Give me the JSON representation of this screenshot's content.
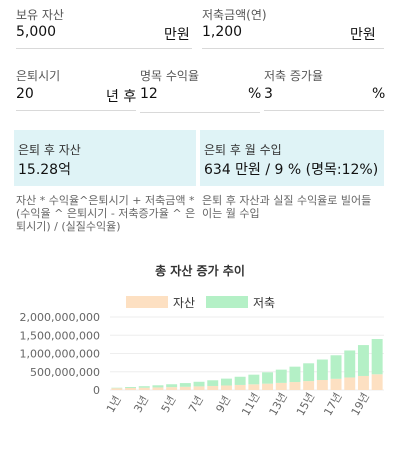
{
  "inputs": {
    "assets": {
      "label": "보유 자산",
      "value": "5,000",
      "unit": "만원"
    },
    "annual_saving": {
      "label": "저축금액(연)",
      "value": "1,200",
      "unit": "만원"
    },
    "retire_years": {
      "label": "은퇴시기",
      "value": "20",
      "unit": "년 후"
    },
    "nominal_return": {
      "label": "명목 수익율",
      "value": "12",
      "unit": "%"
    },
    "saving_growth": {
      "label": "저축 증가율",
      "value": "3",
      "unit": "%"
    }
  },
  "results": {
    "assets_after": {
      "label": "은퇴 후 자산",
      "value": "15.28억"
    },
    "monthly_income": {
      "label": "은퇴 후 월 수입",
      "value": "634 만원 / 9 % (명목:12%)"
    }
  },
  "notes": {
    "left": [
      "자산 * 수익율^은퇴시기 + 저축금액 *",
      "(수익율 ^ 은퇴시기 - 저축증가율 ^ 은",
      "퇴시기) / (실질수익율)"
    ],
    "right": [
      "은퇴 후 자산과 실질 수익율로 빌어들",
      "이는 월 수입"
    ]
  },
  "colors": {
    "card_bg": "#dff3f6",
    "asset": "#fde0c2",
    "saving": "#b4f0c6"
  },
  "chart_data": {
    "type": "bar",
    "stacked": true,
    "title": "총 자산 증가 추이",
    "legend_position": "top",
    "categories": [
      "1년",
      "2년",
      "3년",
      "4년",
      "5년",
      "6년",
      "7년",
      "8년",
      "9년",
      "10년",
      "11년",
      "12년",
      "13년",
      "14년",
      "15년",
      "16년",
      "17년",
      "18년",
      "19년",
      "20년"
    ],
    "x_tick_labels": [
      "1년",
      "3년",
      "5년",
      "7년",
      "9년",
      "11년",
      "13년",
      "15년",
      "17년",
      "19년"
    ],
    "y_tick_labels": [
      "0",
      "500,000,000",
      "1,000,000,000",
      "1,500,000,000",
      "2,000,000,000"
    ],
    "ylim": [
      0,
      2000000000
    ],
    "series": [
      {
        "name": "자산",
        "color": "#fde0c2",
        "values": [
          50000000,
          56000000,
          62700000,
          70200000,
          78700000,
          88100000,
          98700000,
          110500000,
          123800000,
          138700000,
          155300000,
          173900000,
          194800000,
          218200000,
          244400000,
          273700000,
          306500000,
          343300000,
          384500000,
          430700000
        ]
      },
      {
        "name": "저축",
        "color": "#b4f0c6",
        "values": [
          12000000,
          25800000,
          41300000,
          58900000,
          79000000,
          101600000,
          127000000,
          155600000,
          187900000,
          224100000,
          264900000,
          310900000,
          362800000,
          421300000,
          487100000,
          561200000,
          645000000,
          739800000,
          846500000,
          966000000
        ]
      }
    ]
  }
}
